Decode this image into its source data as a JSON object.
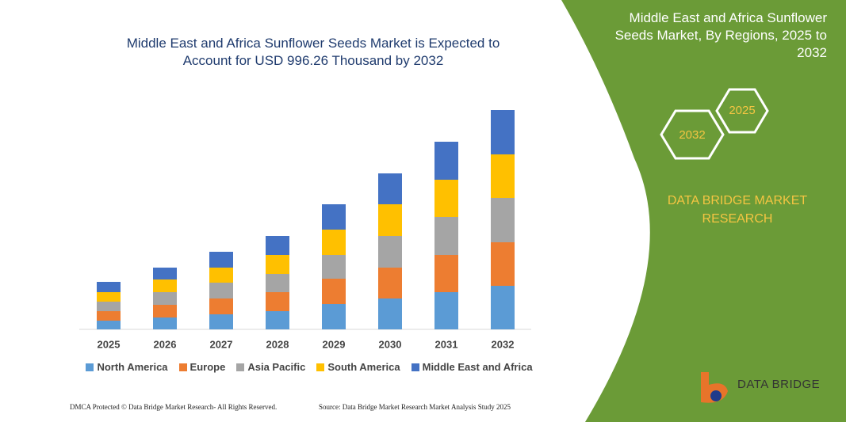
{
  "chart_data": {
    "type": "stacked-bar",
    "title": "Middle East and Africa Sunflower Seeds Market is Expected to Account for USD 996.26 Thousand by 2032",
    "categories": [
      "2025",
      "2026",
      "2027",
      "2028",
      "2029",
      "2030",
      "2031",
      "2032"
    ],
    "series": [
      {
        "name": "North America",
        "color": "#5b9bd5",
        "values": [
          11,
          15,
          19,
          23,
          32,
          39,
          47,
          55
        ]
      },
      {
        "name": "Europe",
        "color": "#ed7d31",
        "values": [
          12,
          16,
          20,
          24,
          32,
          39,
          47,
          55
        ]
      },
      {
        "name": "Asia Pacific",
        "color": "#a5a5a5",
        "values": [
          12,
          16,
          20,
          23,
          30,
          40,
          48,
          56
        ]
      },
      {
        "name": "South America",
        "color": "#ffc000",
        "values": [
          12,
          16,
          19,
          24,
          32,
          40,
          47,
          55
        ]
      },
      {
        "name": "Middle East and Africa",
        "color": "#4472c4",
        "values": [
          13,
          15,
          20,
          24,
          32,
          39,
          48,
          56
        ]
      }
    ],
    "ylim": [
      0,
      300
    ]
  },
  "panel": {
    "title": "Middle East and Africa Sunflower Seeds Market, By Regions, 2025 to 2032",
    "hexagons": [
      "2025",
      "2032"
    ],
    "brand": "DATA BRIDGE MARKET RESEARCH"
  },
  "footer": {
    "left": "DMCA Protected © Data Bridge Market Research- All Rights Reserved.",
    "right": "Source: Data Bridge Market Research Market Analysis Study 2025"
  },
  "logo": "DATA BRIDGE"
}
